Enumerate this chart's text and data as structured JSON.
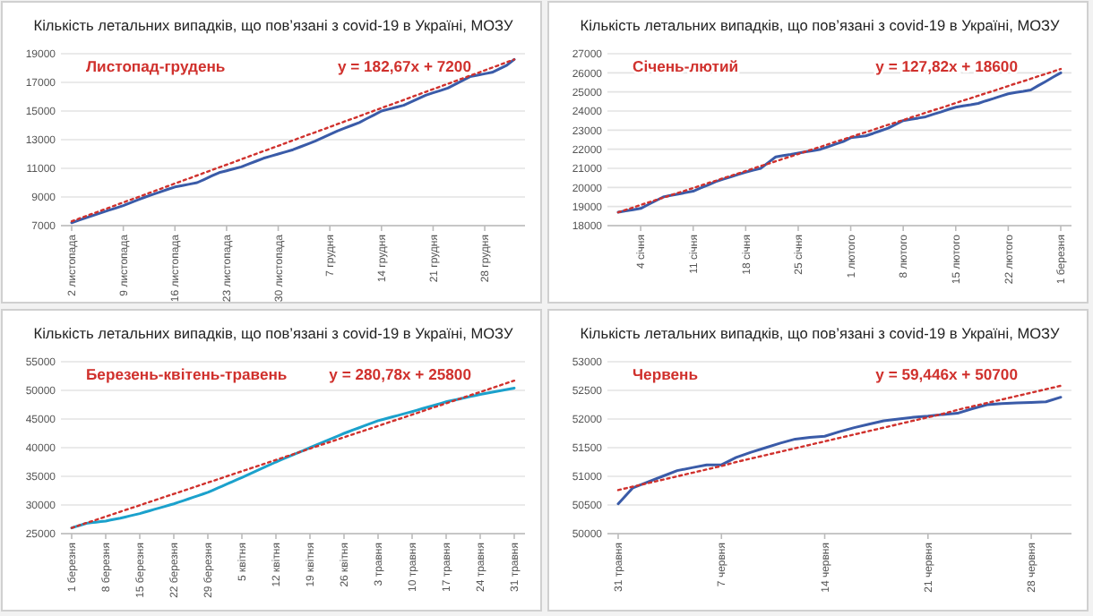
{
  "chart_data": [
    {
      "type": "line",
      "title": "Кількість летальних випадків, що пов’язані з covid-19 в Україні, МОЗУ",
      "annotations": [
        "Листопад-грудень",
        "y = 182,67x + 7200"
      ],
      "categories": [
        "2 листопада",
        null,
        null,
        null,
        null,
        null,
        null,
        "9 листопада",
        null,
        null,
        null,
        null,
        null,
        null,
        "16 листопада",
        null,
        null,
        null,
        null,
        null,
        null,
        "23 листопада",
        null,
        null,
        null,
        null,
        null,
        null,
        "30 листопада",
        null,
        null,
        null,
        null,
        null,
        null,
        "7 грудня",
        null,
        null,
        null,
        null,
        null,
        null,
        "14 грудня",
        null,
        null,
        null,
        null,
        null,
        null,
        "21 грудня",
        null,
        null,
        null,
        null,
        null,
        null,
        "28 грудня",
        null,
        null,
        null,
        null
      ],
      "ylim": [
        7000,
        19000
      ],
      "yticks": [
        7000,
        9000,
        11000,
        13000,
        15000,
        17000,
        19000
      ],
      "grid": "y",
      "marker": "none",
      "series": [
        {
          "color": "#3a5ba8",
          "line_style": "solid",
          "values": [
            7200,
            7380,
            7550,
            7730,
            7900,
            8070,
            8230,
            8400,
            8600,
            8800,
            9000,
            9180,
            9350,
            9530,
            9700,
            9800,
            9900,
            10000,
            10230,
            10470,
            10700,
            10830,
            10970,
            11100,
            11300,
            11500,
            11700,
            11850,
            12000,
            12150,
            12300,
            12500,
            12700,
            12900,
            13130,
            13370,
            13600,
            13800,
            14000,
            14200,
            14470,
            14730,
            15000,
            15130,
            15270,
            15400,
            15630,
            15870,
            16100,
            16270,
            16430,
            16600,
            16870,
            17130,
            17400,
            17500,
            17600,
            17700,
            17950,
            18200,
            18600
          ]
        },
        {
          "color": "#d0312d",
          "line_style": "dotted",
          "values": [
            7300,
            7490,
            7680,
            7860,
            8050,
            8240,
            8430,
            8620,
            8810,
            8990,
            9180,
            9370,
            9560,
            9750,
            9940,
            10130,
            10310,
            10500,
            10690,
            10880,
            11070,
            11250,
            11440,
            11630,
            11820,
            12010,
            12200,
            12380,
            12570,
            12760,
            12950,
            13140,
            13330,
            13510,
            13700,
            13890,
            14080,
            14270,
            14450,
            14640,
            14830,
            15020,
            15210,
            15400,
            15580,
            15770,
            15960,
            16150,
            16340,
            16530,
            16710,
            16900,
            17090,
            17280,
            17470,
            17650,
            17840,
            18030,
            18220,
            18410,
            18600
          ]
        }
      ]
    },
    {
      "type": "line",
      "title": "Кількість летальних випадків, що пов’язані з covid-19 в Україні, МОЗУ",
      "annotations": [
        "Січень-лютий",
        "y = 127,82x + 18600"
      ],
      "categories": [
        null,
        null,
        null,
        "4 січня",
        null,
        null,
        null,
        null,
        null,
        null,
        "11 січня",
        null,
        null,
        null,
        null,
        null,
        null,
        "18 січня",
        null,
        null,
        null,
        null,
        null,
        null,
        "25 січня",
        null,
        null,
        null,
        null,
        null,
        null,
        "1 лютого",
        null,
        null,
        null,
        null,
        null,
        null,
        "8 лютого",
        null,
        null,
        null,
        null,
        null,
        null,
        "15 лютого",
        null,
        null,
        null,
        null,
        null,
        null,
        "22 лютого",
        null,
        null,
        null,
        null,
        null,
        null,
        "1 березня"
      ],
      "ylim": [
        18000,
        27000
      ],
      "yticks": [
        18000,
        19000,
        20000,
        21000,
        22000,
        23000,
        24000,
        25000,
        26000,
        27000
      ],
      "grid": "y",
      "marker": "none",
      "series": [
        {
          "color": "#3a5ba8",
          "line_style": "solid",
          "values": [
            18700,
            18770,
            18830,
            18900,
            19100,
            19300,
            19500,
            19580,
            19650,
            19730,
            19800,
            19970,
            20130,
            20300,
            20430,
            20550,
            20680,
            20800,
            20900,
            21000,
            21300,
            21600,
            21670,
            21730,
            21800,
            21870,
            21930,
            22000,
            22130,
            22270,
            22400,
            22600,
            22650,
            22700,
            22830,
            22970,
            23100,
            23300,
            23500,
            23570,
            23630,
            23700,
            23830,
            23950,
            24080,
            24200,
            24270,
            24330,
            24400,
            24530,
            24650,
            24780,
            24900,
            24970,
            25030,
            25100,
            25330,
            25550,
            25780,
            26000
          ]
        },
        {
          "color": "#d0312d",
          "line_style": "dotted",
          "values": [
            18700,
            18830,
            18950,
            19080,
            19210,
            19340,
            19460,
            19590,
            19720,
            19840,
            19970,
            20100,
            20230,
            20350,
            20480,
            20610,
            20730,
            20860,
            20990,
            21120,
            21240,
            21370,
            21500,
            21620,
            21750,
            21880,
            22010,
            22130,
            22260,
            22390,
            22510,
            22640,
            22770,
            22890,
            23020,
            23150,
            23280,
            23400,
            23530,
            23660,
            23780,
            23910,
            24040,
            24160,
            24290,
            24420,
            24550,
            24670,
            24800,
            24930,
            25050,
            25180,
            25310,
            25440,
            25560,
            25690,
            25820,
            25940,
            26070,
            26200
          ]
        }
      ]
    },
    {
      "type": "line",
      "title": "Кількість летальних випадків, що пов’язані з covid-19 в Україні, МОЗУ",
      "annotations": [
        "Березень-квітень-травень",
        "y = 280,78x + 25800"
      ],
      "categories": [
        "1 березня",
        null,
        null,
        null,
        null,
        null,
        null,
        "8 березня",
        null,
        null,
        null,
        null,
        null,
        null,
        "15 березня",
        null,
        null,
        null,
        null,
        null,
        null,
        "22 березня",
        null,
        null,
        null,
        null,
        null,
        null,
        "29 березня",
        null,
        null,
        null,
        null,
        null,
        null,
        "5 квітня",
        null,
        null,
        null,
        null,
        null,
        null,
        "12 квітня",
        null,
        null,
        null,
        null,
        null,
        null,
        "19 квітня",
        null,
        null,
        null,
        null,
        null,
        null,
        "26 квітня",
        null,
        null,
        null,
        null,
        null,
        null,
        "3 травня",
        null,
        null,
        null,
        null,
        null,
        null,
        "10 травня",
        null,
        null,
        null,
        null,
        null,
        null,
        "17 травня",
        null,
        null,
        null,
        null,
        null,
        null,
        "24 травня",
        null,
        null,
        null,
        null,
        null,
        null,
        "31 травня"
      ],
      "ylim": [
        25000,
        55000
      ],
      "yticks": [
        25000,
        30000,
        35000,
        40000,
        45000,
        50000,
        55000
      ],
      "grid": "y",
      "marker": "none",
      "series": [
        {
          "color": "#1ba1cc",
          "line_style": "solid",
          "values": [
            26000,
            26270,
            26530,
            26800,
            26900,
            27000,
            27100,
            27200,
            27370,
            27530,
            27700,
            27900,
            28100,
            28300,
            28500,
            28740,
            28990,
            29230,
            29470,
            29710,
            29960,
            30200,
            30490,
            30770,
            31060,
            31340,
            31630,
            31910,
            32200,
            32570,
            32940,
            33310,
            33690,
            34060,
            34430,
            34800,
            35190,
            35570,
            35960,
            36340,
            36730,
            37110,
            37500,
            37860,
            38210,
            38570,
            38930,
            39290,
            39640,
            40000,
            40360,
            40710,
            41070,
            41430,
            41790,
            42140,
            42500,
            42810,
            43130,
            43440,
            43760,
            44070,
            44390,
            44700,
            44930,
            45160,
            45390,
            45610,
            45840,
            46070,
            46300,
            46540,
            46790,
            47030,
            47270,
            47510,
            47760,
            48000,
            48190,
            48370,
            48560,
            48740,
            48930,
            49110,
            49300,
            49460,
            49610,
            49770,
            49930,
            50090,
            50240,
            50400
          ]
        },
        {
          "color": "#d0312d",
          "line_style": "dotted",
          "values": [
            26000,
            26280,
            26560,
            26850,
            27130,
            27410,
            27690,
            27980,
            28260,
            28540,
            28820,
            29110,
            29390,
            29670,
            29950,
            30240,
            30520,
            30800,
            31080,
            31370,
            31650,
            31930,
            32210,
            32500,
            32780,
            33060,
            33340,
            33630,
            33910,
            34190,
            34470,
            34750,
            35040,
            35320,
            35600,
            35880,
            36170,
            36450,
            36730,
            37010,
            37300,
            37580,
            37860,
            38140,
            38430,
            38710,
            38990,
            39270,
            39560,
            39840,
            40120,
            40400,
            40690,
            40970,
            41250,
            41530,
            41810,
            42100,
            42380,
            42660,
            42940,
            43230,
            43510,
            43790,
            44070,
            44360,
            44640,
            44920,
            45200,
            45490,
            45770,
            46050,
            46330,
            46620,
            46900,
            47180,
            47460,
            47740,
            48030,
            48310,
            48590,
            48870,
            49160,
            49440,
            49720,
            50000,
            50290,
            50570,
            50850,
            51130,
            51420,
            51700
          ]
        }
      ]
    },
    {
      "type": "line",
      "title": "Кількість летальних випадків, що пов’язані з covid-19 в Україні, МОЗУ",
      "annotations": [
        "Червень",
        "y = 59,446x + 50700"
      ],
      "categories": [
        "31 травня",
        null,
        null,
        null,
        null,
        null,
        null,
        "7 червня",
        null,
        null,
        null,
        null,
        null,
        null,
        "14 червня",
        null,
        null,
        null,
        null,
        null,
        null,
        "21 червня",
        null,
        null,
        null,
        null,
        null,
        null,
        "28 червня",
        null,
        null
      ],
      "ylim": [
        50000,
        53000
      ],
      "yticks": [
        50000,
        50500,
        51000,
        51500,
        52000,
        52500,
        53000
      ],
      "grid": "y",
      "marker": "none",
      "series": [
        {
          "color": "#3a5ba8",
          "line_style": "solid",
          "values": [
            50520,
            50800,
            50900,
            51000,
            51100,
            51150,
            51200,
            51200,
            51330,
            51420,
            51500,
            51580,
            51650,
            51680,
            51700,
            51780,
            51850,
            51910,
            51970,
            52000,
            52030,
            52050,
            52080,
            52100,
            52180,
            52250,
            52270,
            52280,
            52290,
            52300,
            52380
          ]
        },
        {
          "color": "#d0312d",
          "line_style": "dotted",
          "values": [
            50760,
            50820,
            50880,
            50940,
            51000,
            51060,
            51120,
            51180,
            51250,
            51310,
            51370,
            51430,
            51490,
            51550,
            51610,
            51670,
            51730,
            51790,
            51850,
            51910,
            51970,
            52030,
            52090,
            52160,
            52220,
            52280,
            52340,
            52400,
            52460,
            52520,
            52580
          ]
        }
      ]
    }
  ]
}
